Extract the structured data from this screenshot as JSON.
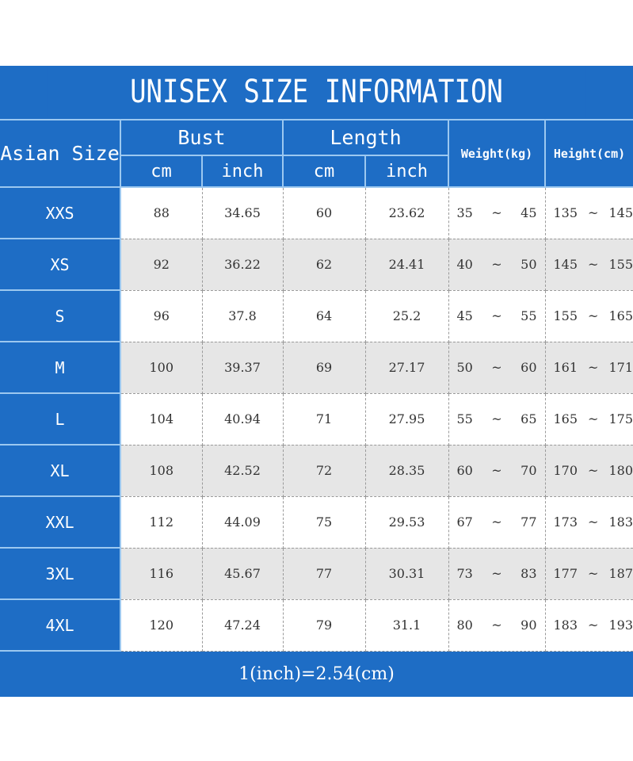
{
  "title": "UNISEX SIZE INFORMATION",
  "headers": {
    "size": "Asian Size",
    "bust": "Bust",
    "length": "Length",
    "weight": "Weight(kg)",
    "height": "Height(cm)",
    "cm": "cm",
    "inch": "inch"
  },
  "range_sep": "~",
  "rows": [
    {
      "size": "XXS",
      "bust_cm": "88",
      "bust_in": "34.65",
      "len_cm": "60",
      "len_in": "23.62",
      "w_min": "35",
      "w_max": "45",
      "h_min": "135",
      "h_max": "145"
    },
    {
      "size": "XS",
      "bust_cm": "92",
      "bust_in": "36.22",
      "len_cm": "62",
      "len_in": "24.41",
      "w_min": "40",
      "w_max": "50",
      "h_min": "145",
      "h_max": "155"
    },
    {
      "size": "S",
      "bust_cm": "96",
      "bust_in": "37.8",
      "len_cm": "64",
      "len_in": "25.2",
      "w_min": "45",
      "w_max": "55",
      "h_min": "155",
      "h_max": "165"
    },
    {
      "size": "M",
      "bust_cm": "100",
      "bust_in": "39.37",
      "len_cm": "69",
      "len_in": "27.17",
      "w_min": "50",
      "w_max": "60",
      "h_min": "161",
      "h_max": "171"
    },
    {
      "size": "L",
      "bust_cm": "104",
      "bust_in": "40.94",
      "len_cm": "71",
      "len_in": "27.95",
      "w_min": "55",
      "w_max": "65",
      "h_min": "165",
      "h_max": "175"
    },
    {
      "size": "XL",
      "bust_cm": "108",
      "bust_in": "42.52",
      "len_cm": "72",
      "len_in": "28.35",
      "w_min": "60",
      "w_max": "70",
      "h_min": "170",
      "h_max": "180"
    },
    {
      "size": "XXL",
      "bust_cm": "112",
      "bust_in": "44.09",
      "len_cm": "75",
      "len_in": "29.53",
      "w_min": "67",
      "w_max": "77",
      "h_min": "173",
      "h_max": "183"
    },
    {
      "size": "3XL",
      "bust_cm": "116",
      "bust_in": "45.67",
      "len_cm": "77",
      "len_in": "30.31",
      "w_min": "73",
      "w_max": "83",
      "h_min": "177",
      "h_max": "187"
    },
    {
      "size": "4XL",
      "bust_cm": "120",
      "bust_in": "47.24",
      "len_cm": "79",
      "len_in": "31.1",
      "w_min": "80",
      "w_max": "90",
      "h_min": "183",
      "h_max": "193"
    }
  ],
  "footer": "1(inch)=2.54(cm)",
  "colors": {
    "header_blue": "#1e6dc5",
    "alt_row": "#e6e6e6"
  }
}
